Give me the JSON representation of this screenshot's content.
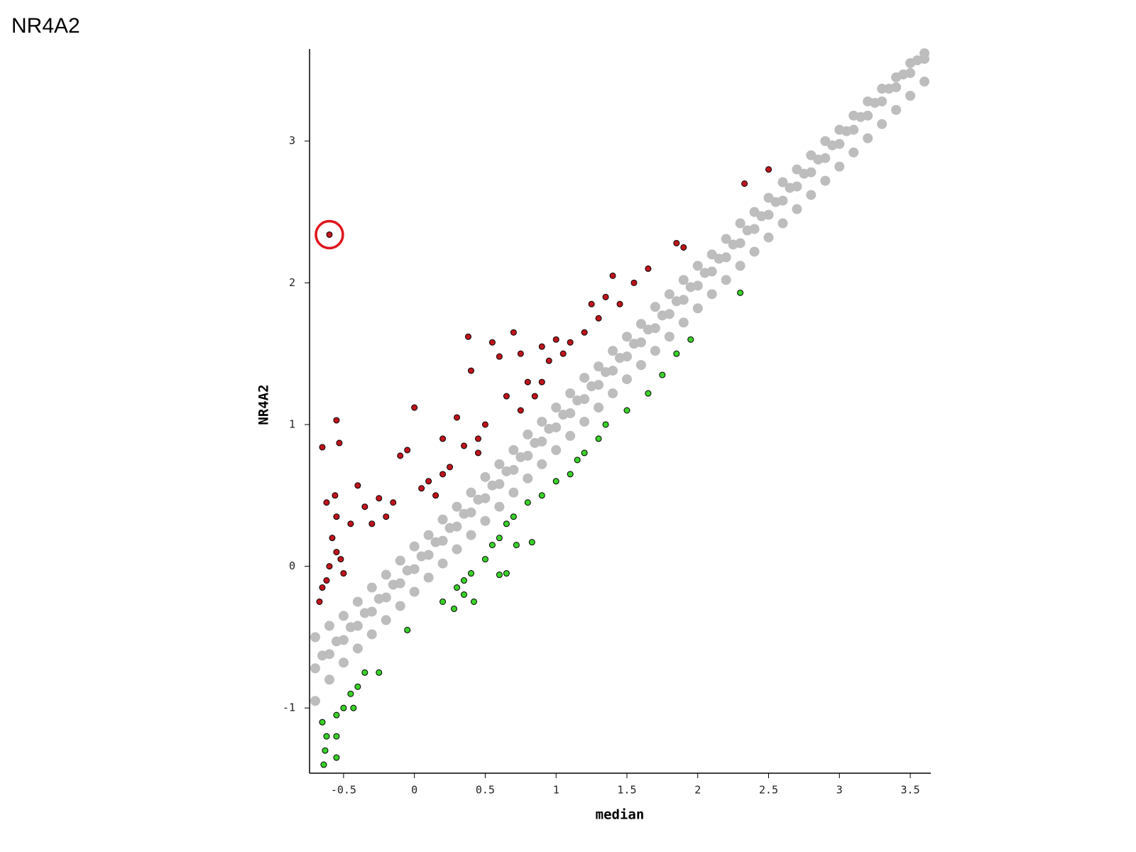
{
  "page_title": "NR4A2",
  "chart_data": {
    "type": "scatter",
    "xlabel": "median",
    "ylabel": "NR4A2",
    "xlim": [
      -0.74,
      3.645
    ],
    "ylim": [
      -1.46,
      3.65
    ],
    "xticks": [
      -0.5,
      0,
      0.5,
      1,
      1.5,
      2,
      2.5,
      3,
      3.5
    ],
    "yticks": [
      -1,
      0,
      1,
      2,
      3
    ],
    "series": [
      {
        "color": "#bdbdbd",
        "x": [
          -0.7,
          -0.6,
          -0.5,
          -0.4,
          -0.3,
          -0.2,
          -0.1,
          0,
          0.1,
          0.2,
          0.3,
          0.4,
          0.5,
          0.6,
          0.7,
          0.8,
          0.9,
          1,
          1.1,
          1.2,
          1.3,
          1.4,
          1.5,
          1.6,
          1.7,
          1.8,
          1.9,
          2,
          2.1,
          2.2,
          2.3,
          2.4,
          2.5,
          2.6,
          2.7,
          2.8,
          2.9,
          3,
          3.1,
          3.2,
          3.3,
          3.4,
          3.5,
          3.6,
          -0.7,
          -0.6,
          -0.5,
          -0.4,
          -0.3,
          -0.2,
          -0.1,
          0,
          0.1,
          0.2,
          0.3,
          0.4,
          0.5,
          0.6,
          0.7,
          0.8,
          0.9,
          1,
          1.1,
          1.2,
          1.3,
          1.4,
          1.5,
          1.6,
          1.7,
          1.8,
          1.9,
          2,
          2.1,
          2.2,
          2.3,
          2.4,
          2.5,
          2.6,
          2.7,
          2.8,
          2.9,
          3,
          3.1,
          3.2,
          3.3,
          3.4,
          3.5,
          3.6,
          -0.7,
          -0.6,
          -0.5,
          -0.4,
          -0.3,
          -0.2,
          -0.1,
          0,
          0.1,
          0.2,
          0.3,
          0.4,
          0.5,
          0.6,
          0.7,
          0.8,
          0.9,
          1,
          1.1,
          1.2,
          1.3,
          1.4,
          1.5,
          1.6,
          1.7,
          1.8,
          1.9,
          2,
          2.1,
          2.2,
          2.3,
          2.4,
          2.5,
          2.6,
          2.7,
          2.8,
          2.9,
          3,
          3.1,
          3.2,
          3.3,
          3.4,
          3.5,
          3.6,
          -0.65,
          -0.55,
          -0.45,
          -0.35,
          -0.25,
          -0.15,
          -0.05,
          0.05,
          0.15,
          0.25,
          0.35,
          0.45,
          0.55,
          0.65,
          0.75,
          0.85,
          0.95,
          1.05,
          1.15,
          1.25,
          1.35,
          1.45,
          1.55,
          1.65,
          1.75,
          1.85,
          1.95,
          2.05,
          2.15,
          2.25,
          2.35,
          2.45,
          2.55,
          2.65,
          2.75,
          2.85,
          2.95,
          3.05,
          3.15,
          3.25,
          3.35,
          3.45,
          3.55
        ],
        "values": [
          -0.5,
          -0.42,
          -0.35,
          -0.25,
          -0.15,
          -0.06,
          0.04,
          0.14,
          0.22,
          0.33,
          0.42,
          0.52,
          0.63,
          0.72,
          0.82,
          0.93,
          1.02,
          1.12,
          1.22,
          1.33,
          1.41,
          1.52,
          1.62,
          1.71,
          1.83,
          1.92,
          2.02,
          2.12,
          2.2,
          2.31,
          2.42,
          2.5,
          2.6,
          2.71,
          2.8,
          2.9,
          3.0,
          3.08,
          3.18,
          3.28,
          3.37,
          3.45,
          3.55,
          3.62,
          -0.72,
          -0.62,
          -0.52,
          -0.42,
          -0.32,
          -0.22,
          -0.12,
          -0.02,
          0.08,
          0.18,
          0.28,
          0.38,
          0.48,
          0.58,
          0.68,
          0.78,
          0.88,
          0.98,
          1.08,
          1.18,
          1.28,
          1.38,
          1.48,
          1.58,
          1.68,
          1.78,
          1.88,
          1.98,
          2.08,
          2.18,
          2.28,
          2.38,
          2.48,
          2.58,
          2.68,
          2.78,
          2.88,
          2.98,
          3.08,
          3.18,
          3.28,
          3.38,
          3.48,
          3.58,
          -0.95,
          -0.8,
          -0.68,
          -0.58,
          -0.48,
          -0.38,
          -0.28,
          -0.18,
          -0.08,
          0.02,
          0.12,
          0.22,
          0.32,
          0.42,
          0.52,
          0.62,
          0.72,
          0.82,
          0.92,
          1.02,
          1.12,
          1.22,
          1.32,
          1.42,
          1.52,
          1.62,
          1.72,
          1.82,
          1.92,
          2.02,
          2.12,
          2.22,
          2.32,
          2.42,
          2.52,
          2.62,
          2.72,
          2.82,
          2.92,
          3.02,
          3.12,
          3.22,
          3.32,
          3.42,
          -0.63,
          -0.53,
          -0.43,
          -0.33,
          -0.23,
          -0.13,
          -0.03,
          0.07,
          0.17,
          0.27,
          0.37,
          0.47,
          0.57,
          0.67,
          0.77,
          0.87,
          0.97,
          1.07,
          1.17,
          1.27,
          1.37,
          1.47,
          1.57,
          1.67,
          1.77,
          1.87,
          1.97,
          2.07,
          2.17,
          2.27,
          2.37,
          2.47,
          2.57,
          2.67,
          2.77,
          2.87,
          2.97,
          3.07,
          3.17,
          3.27,
          3.37,
          3.47,
          3.57
        ]
      },
      {
        "color": "#c0141c",
        "x": [
          -0.6,
          -0.55,
          -0.53,
          -0.65,
          -0.62,
          -0.56,
          -0.55,
          -0.58,
          -0.55,
          -0.6,
          -0.62,
          -0.65,
          -0.67,
          -0.5,
          -0.52,
          -0.45,
          -0.4,
          -0.35,
          -0.3,
          -0.25,
          -0.2,
          -0.15,
          -0.1,
          -0.05,
          0,
          0.05,
          0.1,
          0.15,
          0.2,
          0.2,
          0.25,
          0.3,
          0.35,
          0.4,
          0.38,
          0.45,
          0.5,
          0.55,
          0.6,
          0.65,
          0.7,
          0.75,
          0.75,
          0.8,
          0.85,
          0.9,
          0.95,
          1,
          1.05,
          1.1,
          1.2,
          1.25,
          1.35,
          1.4,
          1.55,
          1.65,
          1.85,
          1.9,
          2.33,
          2.5,
          1.3,
          1.45,
          0.9,
          0.45
        ],
        "values": [
          2.34,
          1.03,
          0.87,
          0.84,
          0.45,
          0.5,
          0.35,
          0.2,
          0.1,
          0,
          -0.1,
          -0.15,
          -0.25,
          -0.05,
          0.05,
          0.3,
          0.57,
          0.42,
          0.3,
          0.48,
          0.35,
          0.45,
          0.78,
          0.82,
          1.12,
          0.55,
          0.6,
          0.5,
          0.9,
          0.65,
          0.7,
          1.05,
          0.85,
          1.38,
          1.62,
          0.9,
          1,
          1.58,
          1.48,
          1.2,
          1.65,
          1.5,
          1.1,
          1.3,
          1.2,
          1.55,
          1.45,
          1.6,
          1.5,
          1.58,
          1.65,
          1.85,
          1.9,
          2.05,
          2,
          2.1,
          2.28,
          2.25,
          2.7,
          2.8,
          1.75,
          1.85,
          1.3,
          0.8
        ]
      },
      {
        "color": "#3ad12a",
        "x": [
          -0.65,
          -0.64,
          -0.62,
          -0.63,
          -0.55,
          -0.55,
          -0.55,
          -0.5,
          -0.45,
          -0.43,
          -0.4,
          -0.35,
          -0.25,
          -0.05,
          0.2,
          0.28,
          0.3,
          0.35,
          0.4,
          0.42,
          0.5,
          0.55,
          0.6,
          0.6,
          0.65,
          0.7,
          0.72,
          0.8,
          0.83,
          0.9,
          1,
          1.1,
          1.15,
          1.2,
          1.3,
          1.35,
          1.5,
          1.65,
          1.75,
          1.85,
          1.95,
          2.3,
          0.65,
          0.35
        ],
        "values": [
          -1.1,
          -1.4,
          -1.2,
          -1.3,
          -1.05,
          -1.35,
          -1.2,
          -1,
          -0.9,
          -1,
          -0.85,
          -0.75,
          -0.75,
          -0.45,
          -0.25,
          -0.3,
          -0.15,
          -0.1,
          -0.05,
          -0.25,
          0.05,
          0.15,
          0.2,
          -0.06,
          0.3,
          0.35,
          0.15,
          0.45,
          0.17,
          0.5,
          0.6,
          0.65,
          0.75,
          0.8,
          0.9,
          1,
          1.1,
          1.22,
          1.35,
          1.5,
          1.6,
          1.93,
          -0.05,
          -0.2
        ]
      }
    ]
  }
}
